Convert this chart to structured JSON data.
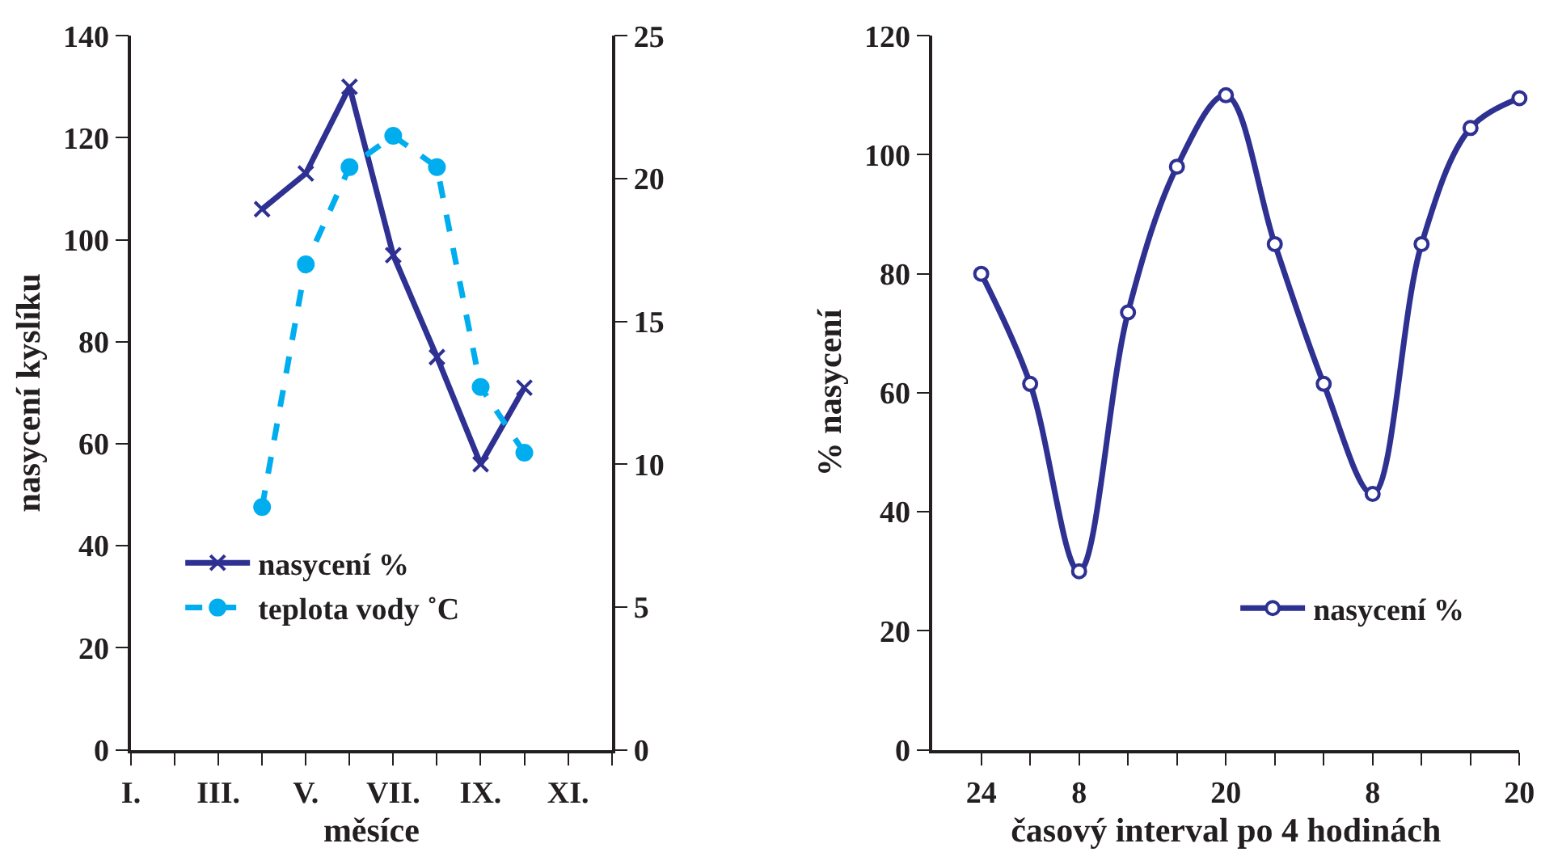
{
  "chart_data": [
    {
      "type": "line",
      "xlabel": "měsíce",
      "ylabel": "nasycení kyslíku",
      "categories": [
        "I.",
        null,
        "III.",
        null,
        "V.",
        null,
        "VII.",
        null,
        "IX.",
        null,
        "XI.",
        null
      ],
      "ylim": [
        0,
        140
      ],
      "yticks": [
        0,
        20,
        40,
        60,
        80,
        100,
        120,
        140
      ],
      "y2lim": [
        0,
        25
      ],
      "y2ticks": [
        0,
        5,
        10,
        15,
        20,
        25
      ],
      "legend": "bottom left",
      "series": [
        {
          "name": "nasycení %",
          "color": "#2e3192",
          "marker": "cross",
          "line_style": "solid",
          "values": [
            null,
            null,
            null,
            106,
            113,
            130,
            97,
            77,
            56,
            71,
            null,
            null
          ]
        },
        {
          "name": "teplota vody ˚C",
          "color": "#00aeef",
          "marker": "circle",
          "line_style": "dashed",
          "axis": "y2",
          "values": [
            null,
            null,
            null,
            8.5,
            17.0,
            20.4,
            21.5,
            20.4,
            12.7,
            10.4,
            null,
            null
          ]
        }
      ]
    },
    {
      "type": "line",
      "xlabel": "časový interval po 4 hodinách",
      "ylabel": "% nasycení",
      "categories": [
        "24",
        null,
        "8",
        null,
        null,
        "20",
        null,
        null,
        "8",
        null,
        null,
        "20"
      ],
      "ylim": [
        0,
        120
      ],
      "yticks": [
        0,
        20,
        40,
        60,
        80,
        100,
        120
      ],
      "legend": "bottom right",
      "series": [
        {
          "name": "nasycení %",
          "color": "#2e3192",
          "marker": "circle",
          "line_style": "solid",
          "values": [
            80,
            61.5,
            30,
            73.5,
            98,
            110,
            85,
            61.5,
            43,
            85,
            104.5,
            109.5
          ]
        }
      ]
    }
  ]
}
